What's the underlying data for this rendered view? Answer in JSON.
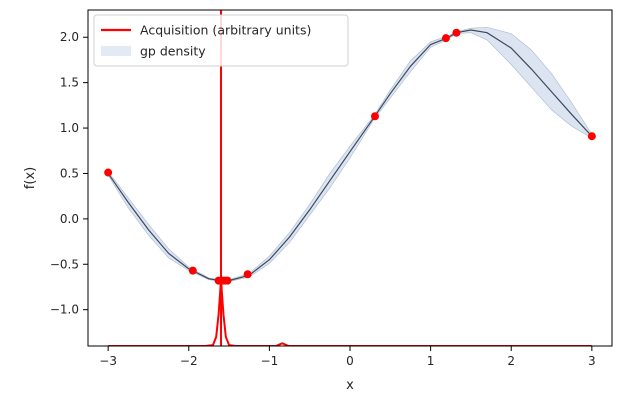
{
  "chart_data": {
    "type": "line",
    "xlabel": "x",
    "ylabel": "f(x)",
    "xlim": [
      -3.25,
      3.25
    ],
    "ylim": [
      -1.4,
      2.3
    ],
    "grid": false,
    "legend_position": "top-left",
    "xticks": [
      -3,
      -2,
      -1,
      0,
      1,
      2,
      3
    ],
    "xtick_labels": [
      "−3",
      "−2",
      "−1",
      "0",
      "1",
      "2",
      "3"
    ],
    "yticks": [
      -1.0,
      -0.5,
      0.0,
      0.5,
      1.0,
      1.5,
      2.0
    ],
    "ytick_labels": [
      "−1.0",
      "−0.5",
      "0.0",
      "0.5",
      "1.0",
      "1.5",
      "2.0"
    ],
    "series": [
      {
        "name": "Acquisition (arbitrary units)",
        "color": "#ff0000",
        "x": [
          -3.0,
          -1.8,
          -1.7,
          -1.66,
          -1.63,
          -1.61,
          -1.6,
          -1.59,
          -1.57,
          -1.54,
          -1.5,
          -1.42,
          -1.3,
          -0.92,
          -0.84,
          -0.76,
          0.0,
          3.0
        ],
        "y": [
          -1.4,
          -1.4,
          -1.39,
          -1.3,
          -1.05,
          -0.8,
          -0.65,
          -0.8,
          -1.05,
          -1.3,
          -1.39,
          -1.4,
          -1.4,
          -1.4,
          -1.37,
          -1.4,
          -1.4,
          -1.4
        ],
        "vline_x": -1.6
      },
      {
        "name": "gp density",
        "color": "#b0c4de",
        "x": [
          -3.0,
          -2.75,
          -2.5,
          -2.25,
          -2.0,
          -1.75,
          -1.6,
          -1.5,
          -1.25,
          -1.0,
          -0.75,
          -0.5,
          -0.25,
          0.0,
          0.3,
          0.5,
          0.75,
          1.0,
          1.2,
          1.32,
          1.5,
          1.7,
          2.0,
          2.25,
          2.5,
          2.75,
          3.0
        ],
        "mean": [
          0.5,
          0.18,
          -0.12,
          -0.38,
          -0.55,
          -0.66,
          -0.68,
          -0.68,
          -0.62,
          -0.45,
          -0.2,
          0.1,
          0.42,
          0.74,
          1.12,
          1.38,
          1.68,
          1.92,
          1.99,
          2.05,
          2.08,
          2.05,
          1.88,
          1.65,
          1.4,
          1.15,
          0.91
        ],
        "upper": [
          0.52,
          0.23,
          -0.06,
          -0.33,
          -0.53,
          -0.65,
          -0.67,
          -0.67,
          -0.6,
          -0.41,
          -0.15,
          0.16,
          0.5,
          0.8,
          1.14,
          1.42,
          1.74,
          1.95,
          2.01,
          2.06,
          2.1,
          2.11,
          2.04,
          1.86,
          1.6,
          1.28,
          0.93
        ],
        "lower": [
          0.48,
          0.12,
          -0.18,
          -0.43,
          -0.57,
          -0.67,
          -0.69,
          -0.69,
          -0.64,
          -0.49,
          -0.26,
          0.04,
          0.34,
          0.67,
          1.1,
          1.33,
          1.62,
          1.89,
          1.97,
          2.04,
          2.05,
          1.97,
          1.7,
          1.45,
          1.2,
          1.02,
          0.89
        ]
      }
    ],
    "observations": {
      "color": "#ff0000",
      "x": [
        -3.0,
        -1.95,
        -1.63,
        -1.58,
        -1.55,
        -1.52,
        -1.27,
        0.31,
        1.19,
        1.32,
        3.0
      ],
      "y": [
        0.51,
        -0.57,
        -0.68,
        -0.68,
        -0.68,
        -0.68,
        -0.61,
        1.13,
        1.99,
        2.05,
        0.91
      ]
    }
  }
}
